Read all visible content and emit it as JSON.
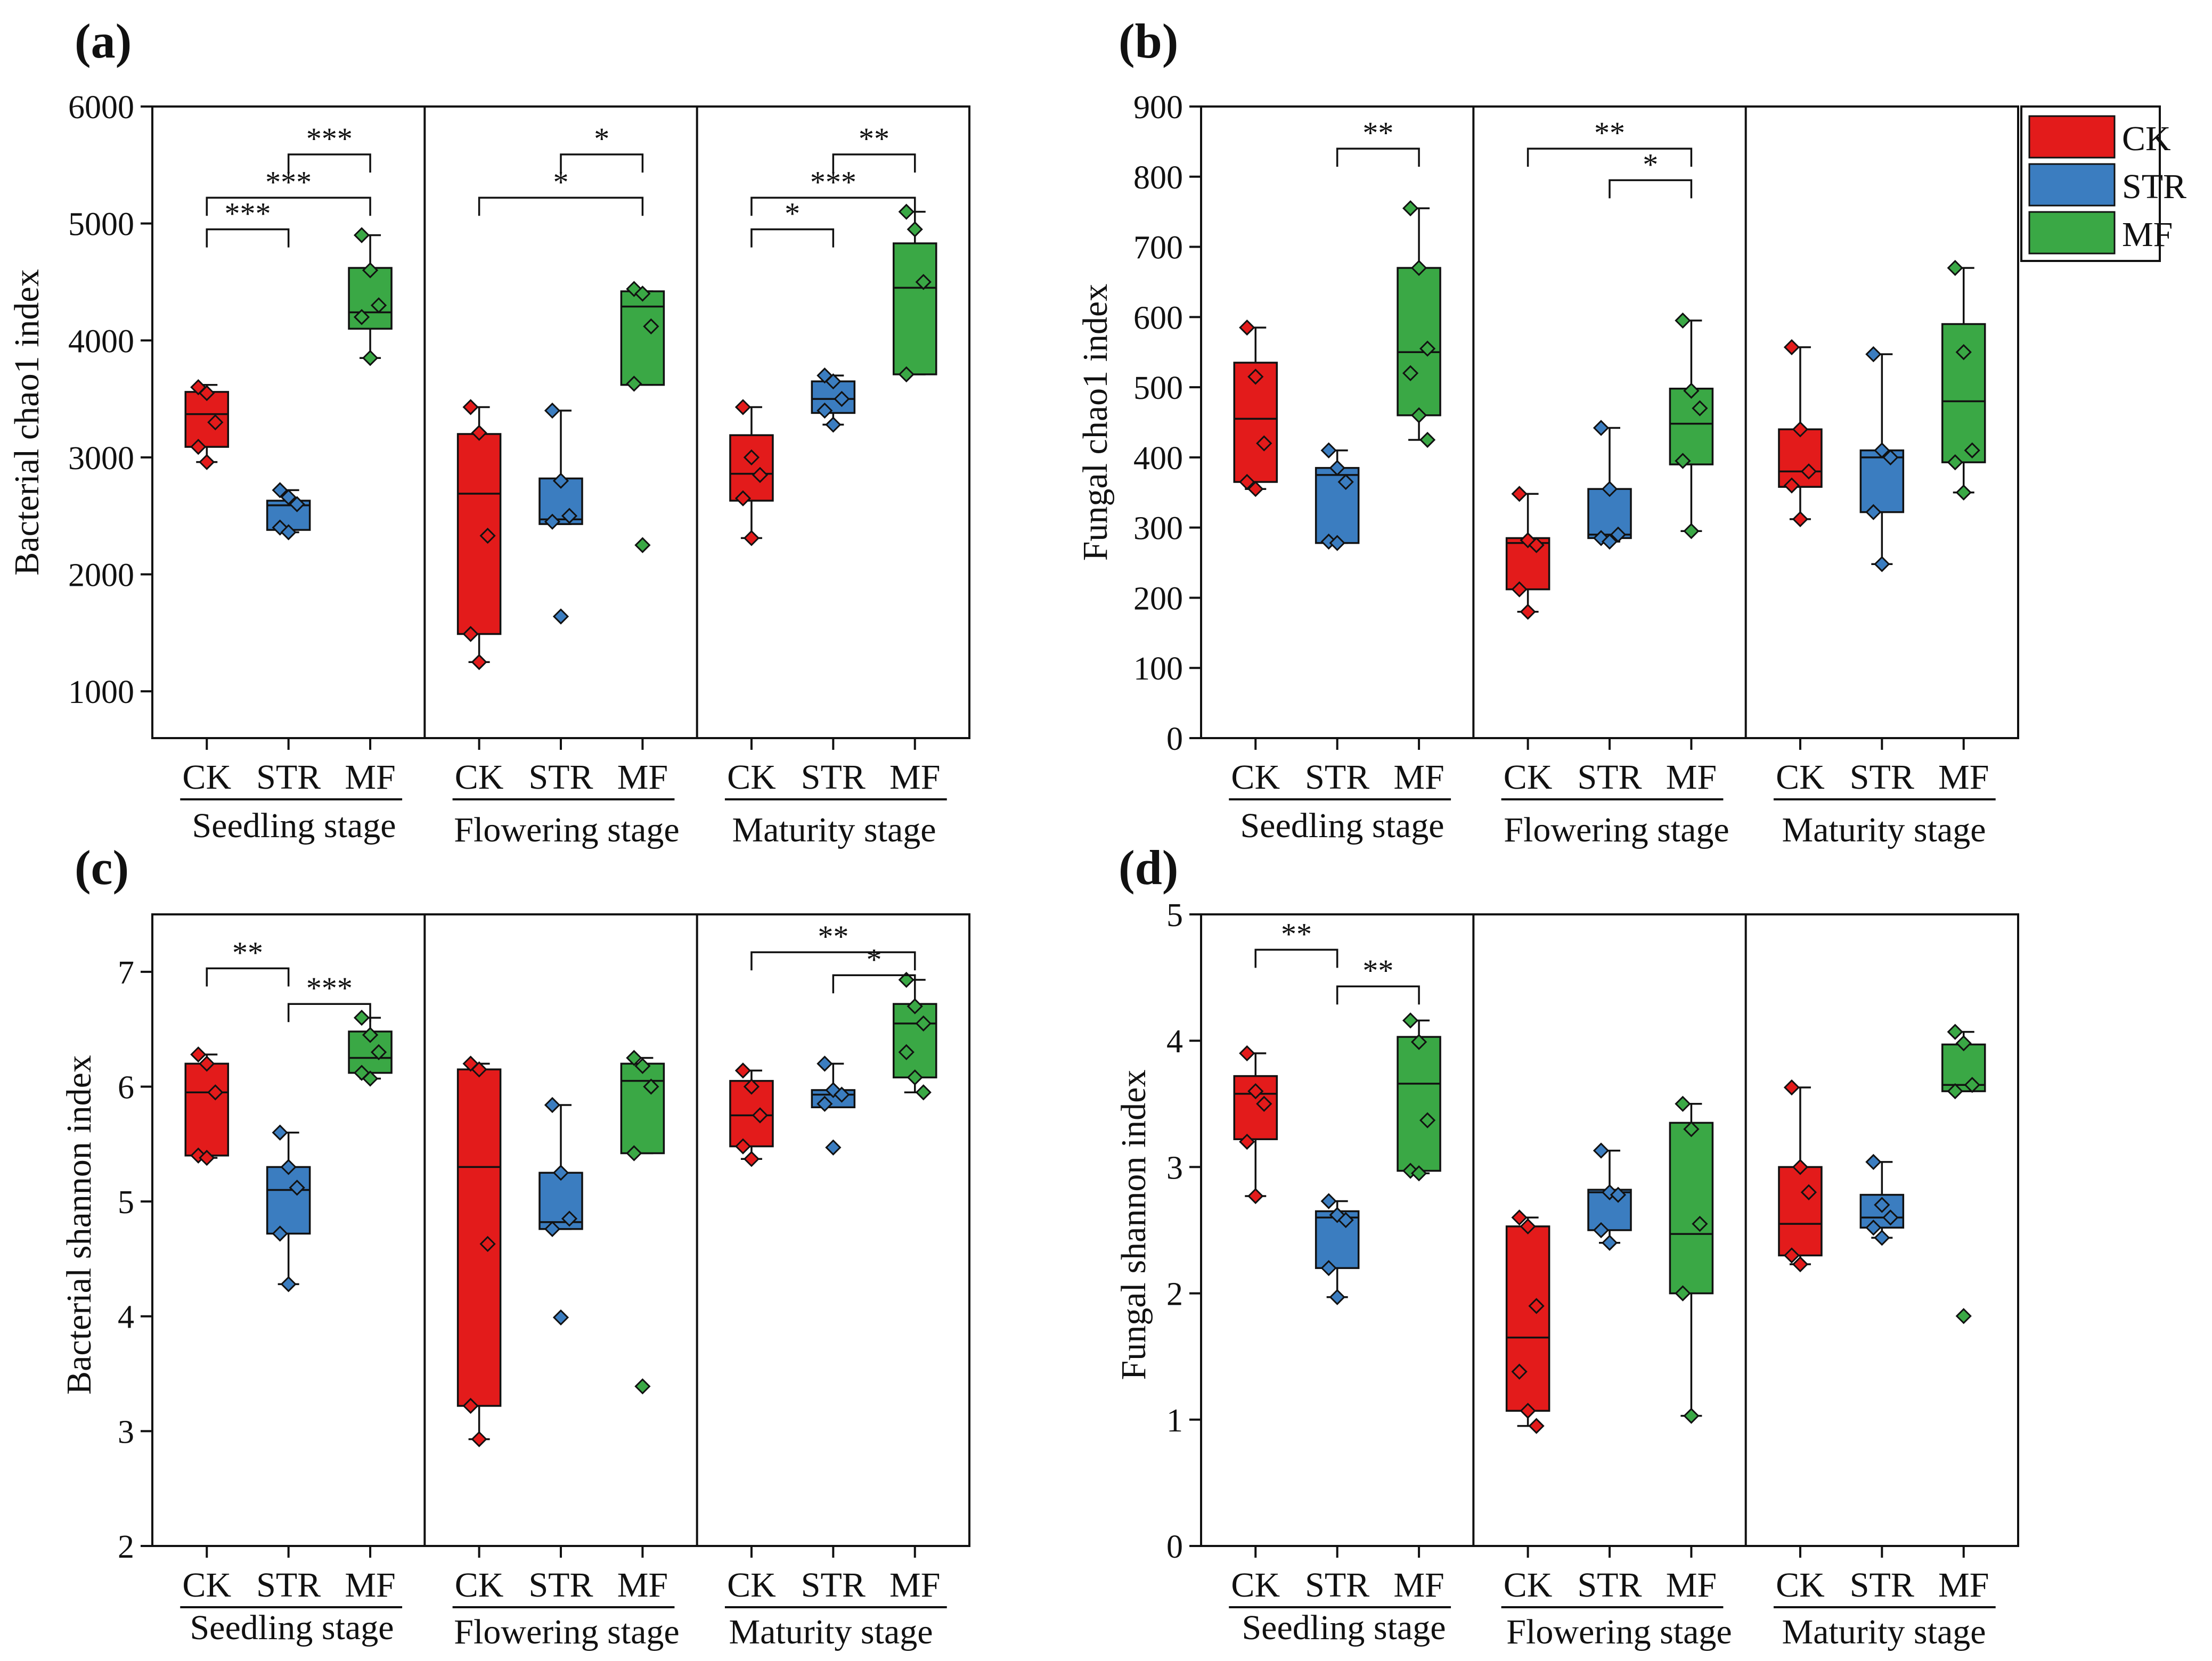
{
  "colors": {
    "CK": "#e31b1b",
    "STR": "#3b7dc0",
    "MF": "#3aa845",
    "line": "#111111"
  },
  "legend": {
    "items": [
      "CK",
      "STR",
      "MF"
    ]
  },
  "stages": [
    "Seedling stage",
    "Flowering stage",
    "Maturity stage"
  ],
  "treatments": [
    "CK",
    "STR",
    "MF"
  ],
  "chart_data": [
    {
      "type": "boxplot",
      "panel_label": "(a)",
      "ylabel": "Bacterial chao1 index",
      "ylim": [
        600,
        6000
      ],
      "yticks": [
        1000,
        2000,
        3000,
        4000,
        5000,
        6000
      ],
      "groups": [
        {
          "stage": "Seedling stage",
          "treatment": "CK",
          "q1": 3090,
          "median": 3370,
          "q3": 3560,
          "whisker_low": 2960,
          "whisker_high": 3620,
          "points": [
            3600,
            3550,
            3300,
            3090,
            2960
          ]
        },
        {
          "stage": "Seedling stage",
          "treatment": "STR",
          "q1": 2380,
          "median": 2590,
          "q3": 2630,
          "whisker_low": 2360,
          "whisker_high": 2720,
          "points": [
            2720,
            2660,
            2600,
            2400,
            2360
          ]
        },
        {
          "stage": "Seedling stage",
          "treatment": "MF",
          "q1": 4100,
          "median": 4240,
          "q3": 4620,
          "whisker_low": 3850,
          "whisker_high": 4900,
          "points": [
            4900,
            4600,
            4300,
            4200,
            3850
          ]
        },
        {
          "stage": "Flowering stage",
          "treatment": "CK",
          "q1": 1490,
          "median": 2690,
          "q3": 3200,
          "whisker_low": 1250,
          "whisker_high": 3430,
          "points": [
            3430,
            3210,
            2330,
            1490,
            1250
          ]
        },
        {
          "stage": "Flowering stage",
          "treatment": "STR",
          "q1": 2430,
          "median": 2470,
          "q3": 2820,
          "whisker_low": 2430,
          "whisker_high": 3400,
          "points": [
            3400,
            2800,
            2500,
            2450
          ],
          "outliers": [
            1640
          ]
        },
        {
          "stage": "Flowering stage",
          "treatment": "MF",
          "q1": 3620,
          "median": 4290,
          "q3": 4420,
          "whisker_low": 3620,
          "whisker_high": 4420,
          "points": [
            4440,
            4400,
            4120,
            3630
          ],
          "outliers": [
            2250
          ]
        },
        {
          "stage": "Maturity stage",
          "treatment": "CK",
          "q1": 2630,
          "median": 2860,
          "q3": 3190,
          "whisker_low": 2310,
          "whisker_high": 3430,
          "points": [
            3430,
            3000,
            2850,
            2650,
            2310
          ]
        },
        {
          "stage": "Maturity stage",
          "treatment": "STR",
          "q1": 3380,
          "median": 3500,
          "q3": 3650,
          "whisker_low": 3280,
          "whisker_high": 3700,
          "points": [
            3700,
            3650,
            3500,
            3400,
            3280
          ]
        },
        {
          "stage": "Maturity stage",
          "treatment": "MF",
          "q1": 3710,
          "median": 4450,
          "q3": 4830,
          "whisker_low": 3710,
          "whisker_high": 5100,
          "points": [
            5100,
            4950,
            4500,
            3710
          ]
        }
      ],
      "brackets": [
        {
          "stage": 0,
          "from": "CK",
          "to": "STR",
          "y": 4950,
          "label": "***"
        },
        {
          "stage": 0,
          "from": "CK",
          "to": "MF",
          "y": 5220,
          "label": "***"
        },
        {
          "stage": 0,
          "from": "STR",
          "to": "MF",
          "y": 5590,
          "label": "***"
        },
        {
          "stage": 1,
          "from": "CK",
          "to": "MF",
          "y": 5220,
          "label": "*"
        },
        {
          "stage": 1,
          "from": "STR",
          "to": "MF",
          "y": 5590,
          "label": "*"
        },
        {
          "stage": 2,
          "from": "CK",
          "to": "STR",
          "y": 4950,
          "label": "*"
        },
        {
          "stage": 2,
          "from": "CK",
          "to": "MF",
          "y": 5220,
          "label": "***"
        },
        {
          "stage": 2,
          "from": "STR",
          "to": "MF",
          "y": 5590,
          "label": "**"
        }
      ]
    },
    {
      "type": "boxplot",
      "panel_label": "(b)",
      "ylabel": "Fungal chao1 index",
      "ylim": [
        0,
        900
      ],
      "yticks": [
        0,
        100,
        200,
        300,
        400,
        500,
        600,
        700,
        800,
        900
      ],
      "groups": [
        {
          "stage": "Seedling stage",
          "treatment": "CK",
          "q1": 365,
          "median": 455,
          "q3": 535,
          "whisker_low": 355,
          "whisker_high": 585,
          "points": [
            585,
            515,
            420,
            365,
            355
          ]
        },
        {
          "stage": "Seedling stage",
          "treatment": "STR",
          "q1": 278,
          "median": 375,
          "q3": 385,
          "whisker_low": 278,
          "whisker_high": 410,
          "points": [
            410,
            385,
            365,
            280,
            278
          ]
        },
        {
          "stage": "Seedling stage",
          "treatment": "MF",
          "q1": 460,
          "median": 550,
          "q3": 670,
          "whisker_low": 425,
          "whisker_high": 755,
          "points": [
            755,
            670,
            555,
            520,
            460,
            425
          ]
        },
        {
          "stage": "Flowering stage",
          "treatment": "CK",
          "q1": 212,
          "median": 278,
          "q3": 285,
          "whisker_low": 180,
          "whisker_high": 348,
          "points": [
            348,
            282,
            275,
            212,
            180
          ]
        },
        {
          "stage": "Flowering stage",
          "treatment": "STR",
          "q1": 285,
          "median": 290,
          "q3": 355,
          "whisker_low": 280,
          "whisker_high": 442,
          "points": [
            442,
            355,
            290,
            285,
            280
          ]
        },
        {
          "stage": "Flowering stage",
          "treatment": "MF",
          "q1": 390,
          "median": 448,
          "q3": 498,
          "whisker_low": 295,
          "whisker_high": 595,
          "points": [
            595,
            495,
            470,
            395,
            295
          ]
        },
        {
          "stage": "Maturity stage",
          "treatment": "CK",
          "q1": 358,
          "median": 380,
          "q3": 440,
          "whisker_low": 312,
          "whisker_high": 557,
          "points": [
            557,
            440,
            380,
            360,
            312
          ]
        },
        {
          "stage": "Maturity stage",
          "treatment": "STR",
          "q1": 322,
          "median": 400,
          "q3": 410,
          "whisker_low": 248,
          "whisker_high": 547,
          "points": [
            547,
            410,
            400,
            322,
            248
          ]
        },
        {
          "stage": "Maturity stage",
          "treatment": "MF",
          "q1": 393,
          "median": 480,
          "q3": 590,
          "whisker_low": 350,
          "whisker_high": 670,
          "points": [
            670,
            550,
            410,
            393,
            350
          ]
        }
      ],
      "brackets": [
        {
          "stage": 0,
          "from": "STR",
          "to": "MF",
          "y": 840,
          "label": "**"
        },
        {
          "stage": 1,
          "from": "CK",
          "to": "MF",
          "y": 840,
          "label": "**"
        },
        {
          "stage": 1,
          "from": "STR",
          "to": "MF",
          "y": 795,
          "label": "*"
        }
      ]
    },
    {
      "type": "boxplot",
      "panel_label": "(c)",
      "ylabel": "Bacterial shannon index",
      "ylim": [
        2,
        7.5
      ],
      "yticks": [
        2,
        3,
        4,
        5,
        6,
        7
      ],
      "groups": [
        {
          "stage": "Seedling stage",
          "treatment": "CK",
          "q1": 5.4,
          "median": 5.95,
          "q3": 6.2,
          "whisker_low": 5.38,
          "whisker_high": 6.28,
          "points": [
            6.28,
            6.2,
            5.95,
            5.4,
            5.38
          ]
        },
        {
          "stage": "Seedling stage",
          "treatment": "STR",
          "q1": 4.72,
          "median": 5.1,
          "q3": 5.3,
          "whisker_low": 4.28,
          "whisker_high": 5.6,
          "points": [
            5.6,
            5.3,
            5.12,
            4.72,
            4.28
          ]
        },
        {
          "stage": "Seedling stage",
          "treatment": "MF",
          "q1": 6.12,
          "median": 6.25,
          "q3": 6.48,
          "whisker_low": 6.07,
          "whisker_high": 6.6,
          "points": [
            6.6,
            6.45,
            6.3,
            6.12,
            6.07
          ]
        },
        {
          "stage": "Flowering stage",
          "treatment": "CK",
          "q1": 3.22,
          "median": 5.3,
          "q3": 6.15,
          "whisker_low": 2.93,
          "whisker_high": 6.2,
          "points": [
            6.2,
            6.15,
            4.63,
            3.22,
            2.93
          ]
        },
        {
          "stage": "Flowering stage",
          "treatment": "STR",
          "q1": 4.76,
          "median": 4.82,
          "q3": 5.25,
          "whisker_low": 4.76,
          "whisker_high": 5.84,
          "points": [
            5.84,
            5.25,
            4.85,
            4.76
          ],
          "outliers": [
            3.99
          ]
        },
        {
          "stage": "Flowering stage",
          "treatment": "MF",
          "q1": 5.42,
          "median": 6.05,
          "q3": 6.2,
          "whisker_low": 5.42,
          "whisker_high": 6.25,
          "points": [
            6.25,
            6.18,
            6.0,
            5.42
          ],
          "outliers": [
            3.39
          ]
        },
        {
          "stage": "Maturity stage",
          "treatment": "CK",
          "q1": 5.48,
          "median": 5.75,
          "q3": 6.05,
          "whisker_low": 5.37,
          "whisker_high": 6.14,
          "points": [
            6.14,
            6.0,
            5.75,
            5.48,
            5.37
          ]
        },
        {
          "stage": "Maturity stage",
          "treatment": "STR",
          "q1": 5.82,
          "median": 5.93,
          "q3": 5.97,
          "whisker_low": 5.82,
          "whisker_high": 6.2,
          "points": [
            6.2,
            5.97,
            5.93,
            5.85
          ],
          "outliers": [
            5.47
          ]
        },
        {
          "stage": "Maturity stage",
          "treatment": "MF",
          "q1": 6.08,
          "median": 6.55,
          "q3": 6.72,
          "whisker_low": 5.95,
          "whisker_high": 6.93,
          "points": [
            6.93,
            6.7,
            6.55,
            6.3,
            6.08,
            5.95
          ]
        }
      ],
      "brackets": [
        {
          "stage": 0,
          "from": "CK",
          "to": "STR",
          "y": 7.03,
          "label": "**"
        },
        {
          "stage": 0,
          "from": "STR",
          "to": "MF",
          "y": 6.72,
          "label": "***"
        },
        {
          "stage": 2,
          "from": "CK",
          "to": "MF",
          "y": 7.17,
          "label": "**"
        },
        {
          "stage": 2,
          "from": "STR",
          "to": "MF",
          "y": 6.97,
          "label": "*"
        }
      ]
    },
    {
      "type": "boxplot",
      "panel_label": "(d)",
      "ylabel": "Fungal shannon index",
      "ylim": [
        0,
        5
      ],
      "yticks": [
        0,
        1,
        2,
        3,
        4,
        5
      ],
      "groups": [
        {
          "stage": "Seedling stage",
          "treatment": "CK",
          "q1": 3.22,
          "median": 3.58,
          "q3": 3.72,
          "whisker_low": 2.77,
          "whisker_high": 3.9,
          "points": [
            3.9,
            3.6,
            3.5,
            3.2,
            2.77
          ]
        },
        {
          "stage": "Seedling stage",
          "treatment": "STR",
          "q1": 2.2,
          "median": 2.6,
          "q3": 2.65,
          "whisker_low": 1.97,
          "whisker_high": 2.73,
          "points": [
            2.73,
            2.62,
            2.58,
            2.2,
            1.97
          ]
        },
        {
          "stage": "Seedling stage",
          "treatment": "MF",
          "q1": 2.97,
          "median": 3.66,
          "q3": 4.03,
          "whisker_low": 2.95,
          "whisker_high": 4.16,
          "points": [
            4.16,
            3.99,
            3.37,
            2.97,
            2.95
          ]
        },
        {
          "stage": "Flowering stage",
          "treatment": "CK",
          "q1": 1.07,
          "median": 1.65,
          "q3": 2.53,
          "whisker_low": 0.95,
          "whisker_high": 2.6,
          "points": [
            2.6,
            2.53,
            1.9,
            1.38,
            1.07,
            0.95
          ]
        },
        {
          "stage": "Flowering stage",
          "treatment": "STR",
          "q1": 2.5,
          "median": 2.8,
          "q3": 2.82,
          "whisker_low": 2.4,
          "whisker_high": 3.13,
          "points": [
            3.13,
            2.8,
            2.78,
            2.5,
            2.4
          ]
        },
        {
          "stage": "Flowering stage",
          "treatment": "MF",
          "q1": 2.0,
          "median": 2.47,
          "q3": 3.35,
          "whisker_low": 1.03,
          "whisker_high": 3.5,
          "points": [
            3.5,
            3.3,
            2.55,
            2.0,
            1.03
          ]
        },
        {
          "stage": "Maturity stage",
          "treatment": "CK",
          "q1": 2.3,
          "median": 2.55,
          "q3": 3.0,
          "whisker_low": 2.23,
          "whisker_high": 3.63,
          "points": [
            3.63,
            3.0,
            2.8,
            2.3,
            2.23
          ]
        },
        {
          "stage": "Maturity stage",
          "treatment": "STR",
          "q1": 2.52,
          "median": 2.6,
          "q3": 2.78,
          "whisker_low": 2.44,
          "whisker_high": 3.04,
          "points": [
            3.04,
            2.7,
            2.6,
            2.52,
            2.44
          ]
        },
        {
          "stage": "Maturity stage",
          "treatment": "MF",
          "q1": 3.6,
          "median": 3.65,
          "q3": 3.97,
          "whisker_low": 3.6,
          "whisker_high": 4.07,
          "points": [
            4.07,
            3.98,
            3.65,
            3.6
          ],
          "outliers": [
            1.82
          ]
        }
      ],
      "brackets": [
        {
          "stage": 0,
          "from": "CK",
          "to": "STR",
          "y": 4.72,
          "label": "**"
        },
        {
          "stage": 0,
          "from": "STR",
          "to": "MF",
          "y": 4.43,
          "label": "**"
        }
      ]
    }
  ]
}
